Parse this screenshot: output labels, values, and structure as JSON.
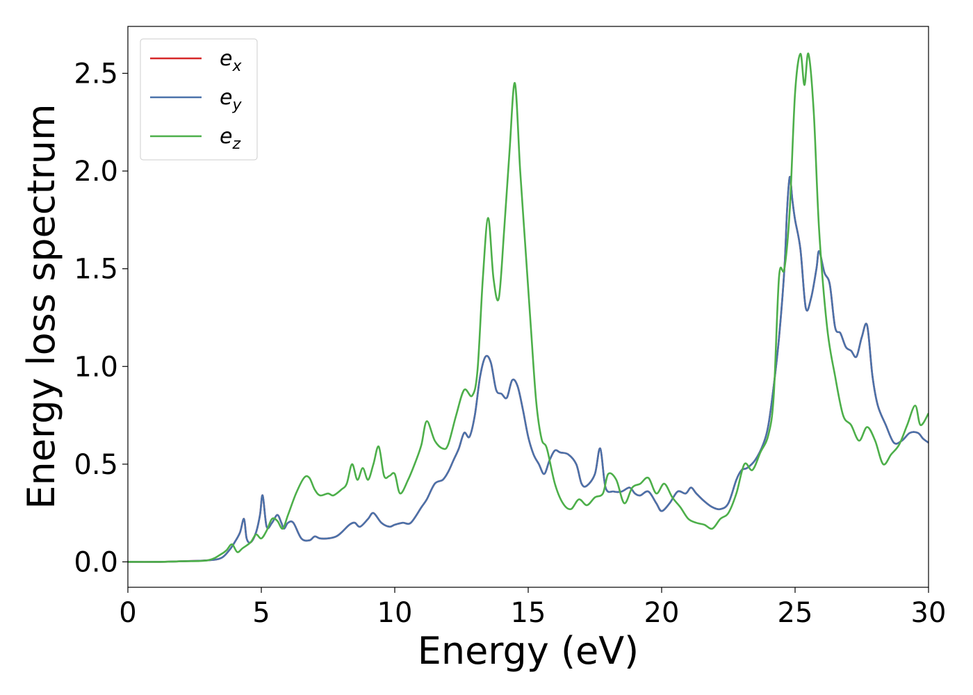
{
  "chart_data": {
    "type": "line",
    "title": "",
    "xlabel": "Energy (eV)",
    "ylabel": "Energy loss spectrum",
    "xlim": [
      0,
      30
    ],
    "ylim": [
      -0.13,
      2.74
    ],
    "xticks": [
      0,
      5,
      10,
      15,
      20,
      25,
      30
    ],
    "yticks": [
      0.0,
      0.5,
      1.0,
      1.5,
      2.0,
      2.5
    ],
    "xtick_labels": [
      "0",
      "5",
      "10",
      "15",
      "20",
      "25",
      "30"
    ],
    "ytick_labels": [
      "0.0",
      "0.5",
      "1.0",
      "1.5",
      "2.0",
      "2.5"
    ],
    "grid": false,
    "legend_position": "top-left",
    "series": [
      {
        "name": "e",
        "subscript": "x",
        "color": "#d62728",
        "x": [
          0,
          1,
          2,
          3,
          3.5,
          3.8,
          4.0,
          4.2,
          4.35,
          4.45,
          4.6,
          4.8,
          4.95,
          5.05,
          5.2,
          5.4,
          5.6,
          5.75,
          5.85,
          6.0,
          6.2,
          6.5,
          6.8,
          7.0,
          7.2,
          7.5,
          7.8,
          8.0,
          8.3,
          8.5,
          8.7,
          9.0,
          9.2,
          9.5,
          9.8,
          10.0,
          10.3,
          10.6,
          11.0,
          11.2,
          11.5,
          11.8,
          12.0,
          12.2,
          12.4,
          12.6,
          12.8,
          13.0,
          13.2,
          13.4,
          13.6,
          13.8,
          14.0,
          14.2,
          14.4,
          14.6,
          14.8,
          15.0,
          15.2,
          15.4,
          15.6,
          15.8,
          16.0,
          16.2,
          16.5,
          16.8,
          17.0,
          17.2,
          17.5,
          17.7,
          17.9,
          18.2,
          18.5,
          18.8,
          19.0,
          19.2,
          19.5,
          19.8,
          20.0,
          20.3,
          20.6,
          20.9,
          21.1,
          21.3,
          21.6,
          21.9,
          22.2,
          22.5,
          22.8,
          23.0,
          23.2,
          23.5,
          23.8,
          24.0,
          24.2,
          24.4,
          24.6,
          24.7,
          24.8,
          24.9,
          25.0,
          25.2,
          25.4,
          25.6,
          25.8,
          25.9,
          26.1,
          26.3,
          26.5,
          26.7,
          26.9,
          27.1,
          27.3,
          27.5,
          27.7,
          27.9,
          28.1,
          28.4,
          28.7,
          29.0,
          29.3,
          29.6,
          29.8,
          30
        ],
        "y": [
          0,
          0,
          0.003,
          0.008,
          0.02,
          0.06,
          0.1,
          0.15,
          0.22,
          0.12,
          0.1,
          0.15,
          0.24,
          0.34,
          0.18,
          0.2,
          0.24,
          0.2,
          0.17,
          0.2,
          0.2,
          0.12,
          0.11,
          0.13,
          0.12,
          0.12,
          0.13,
          0.15,
          0.19,
          0.2,
          0.18,
          0.22,
          0.25,
          0.2,
          0.18,
          0.19,
          0.2,
          0.2,
          0.28,
          0.32,
          0.4,
          0.42,
          0.46,
          0.52,
          0.58,
          0.66,
          0.64,
          0.75,
          0.95,
          1.05,
          1.02,
          0.88,
          0.86,
          0.84,
          0.93,
          0.9,
          0.78,
          0.64,
          0.55,
          0.5,
          0.45,
          0.52,
          0.57,
          0.56,
          0.55,
          0.5,
          0.4,
          0.39,
          0.45,
          0.58,
          0.38,
          0.36,
          0.36,
          0.38,
          0.35,
          0.34,
          0.36,
          0.3,
          0.26,
          0.3,
          0.36,
          0.35,
          0.38,
          0.35,
          0.31,
          0.28,
          0.27,
          0.3,
          0.42,
          0.47,
          0.48,
          0.52,
          0.6,
          0.7,
          0.9,
          1.15,
          1.5,
          1.8,
          1.97,
          1.85,
          1.75,
          1.6,
          1.3,
          1.35,
          1.5,
          1.59,
          1.48,
          1.42,
          1.2,
          1.17,
          1.1,
          1.08,
          1.05,
          1.15,
          1.21,
          0.95,
          0.8,
          0.7,
          0.61,
          0.62,
          0.66,
          0.66,
          0.63,
          0.61
        ]
      },
      {
        "name": "e",
        "subscript": "y",
        "color": "#4a72aa",
        "x": [
          0,
          1,
          2,
          3,
          3.5,
          3.8,
          4.0,
          4.2,
          4.35,
          4.45,
          4.6,
          4.8,
          4.95,
          5.05,
          5.2,
          5.4,
          5.6,
          5.75,
          5.85,
          6.0,
          6.2,
          6.5,
          6.8,
          7.0,
          7.2,
          7.5,
          7.8,
          8.0,
          8.3,
          8.5,
          8.7,
          9.0,
          9.2,
          9.5,
          9.8,
          10.0,
          10.3,
          10.6,
          11.0,
          11.2,
          11.5,
          11.8,
          12.0,
          12.2,
          12.4,
          12.6,
          12.8,
          13.0,
          13.2,
          13.4,
          13.6,
          13.8,
          14.0,
          14.2,
          14.4,
          14.6,
          14.8,
          15.0,
          15.2,
          15.4,
          15.6,
          15.8,
          16.0,
          16.2,
          16.5,
          16.8,
          17.0,
          17.2,
          17.5,
          17.7,
          17.9,
          18.2,
          18.5,
          18.8,
          19.0,
          19.2,
          19.5,
          19.8,
          20.0,
          20.3,
          20.6,
          20.9,
          21.1,
          21.3,
          21.6,
          21.9,
          22.2,
          22.5,
          22.8,
          23.0,
          23.2,
          23.5,
          23.8,
          24.0,
          24.2,
          24.4,
          24.6,
          24.7,
          24.8,
          24.9,
          25.0,
          25.2,
          25.4,
          25.6,
          25.8,
          25.9,
          26.1,
          26.3,
          26.5,
          26.7,
          26.9,
          27.1,
          27.3,
          27.5,
          27.7,
          27.9,
          28.1,
          28.4,
          28.7,
          29.0,
          29.3,
          29.6,
          29.8,
          30
        ],
        "y": [
          0,
          0,
          0.003,
          0.008,
          0.02,
          0.06,
          0.1,
          0.15,
          0.22,
          0.12,
          0.1,
          0.15,
          0.24,
          0.34,
          0.18,
          0.2,
          0.24,
          0.2,
          0.17,
          0.2,
          0.2,
          0.12,
          0.11,
          0.13,
          0.12,
          0.12,
          0.13,
          0.15,
          0.19,
          0.2,
          0.18,
          0.22,
          0.25,
          0.2,
          0.18,
          0.19,
          0.2,
          0.2,
          0.28,
          0.32,
          0.4,
          0.42,
          0.46,
          0.52,
          0.58,
          0.66,
          0.64,
          0.75,
          0.95,
          1.05,
          1.02,
          0.88,
          0.86,
          0.84,
          0.93,
          0.9,
          0.78,
          0.64,
          0.55,
          0.5,
          0.45,
          0.52,
          0.57,
          0.56,
          0.55,
          0.5,
          0.4,
          0.39,
          0.45,
          0.58,
          0.38,
          0.36,
          0.36,
          0.38,
          0.35,
          0.34,
          0.36,
          0.3,
          0.26,
          0.3,
          0.36,
          0.35,
          0.38,
          0.35,
          0.31,
          0.28,
          0.27,
          0.3,
          0.42,
          0.47,
          0.48,
          0.52,
          0.6,
          0.7,
          0.9,
          1.15,
          1.5,
          1.8,
          1.97,
          1.85,
          1.75,
          1.6,
          1.3,
          1.35,
          1.5,
          1.59,
          1.48,
          1.42,
          1.2,
          1.17,
          1.1,
          1.08,
          1.05,
          1.15,
          1.21,
          0.95,
          0.8,
          0.7,
          0.61,
          0.62,
          0.66,
          0.66,
          0.63,
          0.61
        ]
      },
      {
        "name": "e",
        "subscript": "z",
        "color": "#4daf4a",
        "x": [
          0,
          1,
          2,
          3,
          3.5,
          3.7,
          3.9,
          4.1,
          4.3,
          4.6,
          4.8,
          5.0,
          5.2,
          5.4,
          5.6,
          5.8,
          6.0,
          6.3,
          6.6,
          6.8,
          7.0,
          7.2,
          7.5,
          7.7,
          8.0,
          8.2,
          8.4,
          8.6,
          8.8,
          9.0,
          9.2,
          9.4,
          9.6,
          9.8,
          10.0,
          10.2,
          10.5,
          10.8,
          11.0,
          11.2,
          11.5,
          11.8,
          12.0,
          12.3,
          12.6,
          12.9,
          13.1,
          13.3,
          13.5,
          13.7,
          13.9,
          14.1,
          14.3,
          14.5,
          14.7,
          14.9,
          15.1,
          15.3,
          15.5,
          15.7,
          16.0,
          16.3,
          16.6,
          16.9,
          17.2,
          17.5,
          17.8,
          18.0,
          18.3,
          18.6,
          18.9,
          19.2,
          19.5,
          19.8,
          20.1,
          20.4,
          20.7,
          21.0,
          21.3,
          21.6,
          21.9,
          22.2,
          22.5,
          22.8,
          23.1,
          23.4,
          23.7,
          24.0,
          24.2,
          24.4,
          24.6,
          24.8,
          25.0,
          25.2,
          25.35,
          25.5,
          25.7,
          25.9,
          26.2,
          26.5,
          26.8,
          27.1,
          27.4,
          27.7,
          28.0,
          28.3,
          28.6,
          28.9,
          29.2,
          29.5,
          29.7,
          30
        ],
        "y": [
          0,
          0,
          0.003,
          0.008,
          0.04,
          0.06,
          0.09,
          0.05,
          0.07,
          0.1,
          0.14,
          0.12,
          0.16,
          0.22,
          0.21,
          0.17,
          0.24,
          0.35,
          0.43,
          0.43,
          0.37,
          0.34,
          0.35,
          0.34,
          0.37,
          0.4,
          0.5,
          0.42,
          0.48,
          0.42,
          0.5,
          0.59,
          0.44,
          0.44,
          0.45,
          0.35,
          0.42,
          0.52,
          0.6,
          0.72,
          0.62,
          0.58,
          0.6,
          0.75,
          0.88,
          0.85,
          0.98,
          1.45,
          1.76,
          1.45,
          1.35,
          1.7,
          2.1,
          2.45,
          2.0,
          1.6,
          1.2,
          0.82,
          0.63,
          0.58,
          0.4,
          0.3,
          0.27,
          0.32,
          0.29,
          0.33,
          0.35,
          0.45,
          0.42,
          0.3,
          0.38,
          0.4,
          0.43,
          0.35,
          0.4,
          0.33,
          0.28,
          0.22,
          0.2,
          0.19,
          0.17,
          0.22,
          0.25,
          0.35,
          0.5,
          0.47,
          0.56,
          0.65,
          0.85,
          1.46,
          1.5,
          1.8,
          2.4,
          2.6,
          2.44,
          2.6,
          2.3,
          1.7,
          1.2,
          0.95,
          0.75,
          0.7,
          0.62,
          0.69,
          0.62,
          0.5,
          0.55,
          0.6,
          0.7,
          0.8,
          0.7,
          0.76
        ]
      }
    ]
  }
}
